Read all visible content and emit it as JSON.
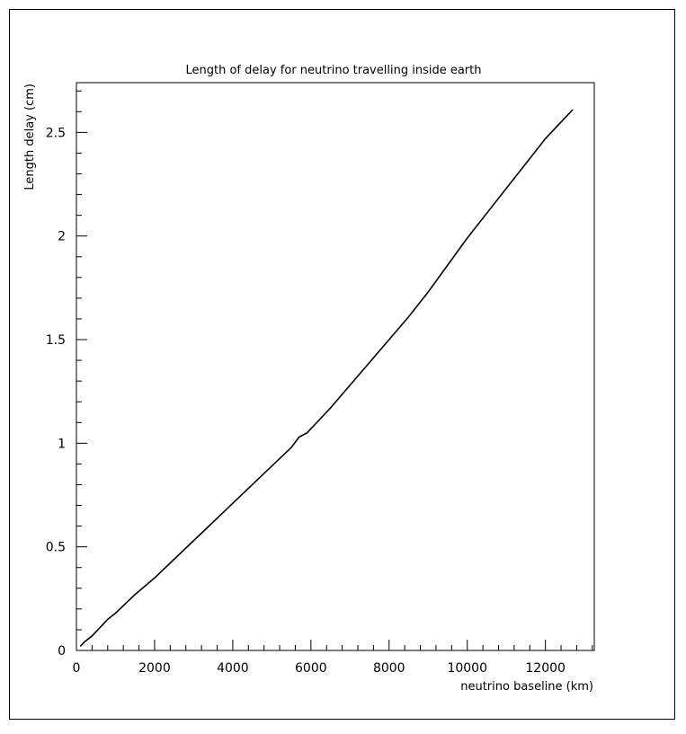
{
  "chart_data": {
    "type": "line",
    "title": "Length of delay for neutrino travelling inside earth",
    "xlabel": "neutrino baseline  (km)",
    "ylabel": "Length delay (cm)",
    "xlim": [
      0,
      13250
    ],
    "ylim": [
      0,
      2.74
    ],
    "xticks": [
      0,
      2000,
      4000,
      6000,
      8000,
      10000,
      12000
    ],
    "xtick_labels": [
      "0",
      "2000",
      "4000",
      "6000",
      "8000",
      "10000",
      "12000"
    ],
    "yticks": [
      0,
      0.5,
      1,
      1.5,
      2,
      2.5
    ],
    "ytick_labels": [
      "0",
      "0.5",
      "1",
      "1.5",
      "2",
      "2.5"
    ],
    "grid": false,
    "legend": "none",
    "series": [
      {
        "x": [
          100,
          200,
          400,
          600,
          800,
          1000,
          1500,
          2000,
          2500,
          3000,
          3500,
          4000,
          4500,
          5000,
          5500,
          5700,
          5900,
          6000,
          6500,
          7000,
          7500,
          8000,
          8500,
          9000,
          9500,
          10000,
          10500,
          11000,
          11500,
          12000,
          12500,
          12700
        ],
        "y": [
          0.02,
          0.04,
          0.07,
          0.11,
          0.15,
          0.18,
          0.27,
          0.35,
          0.44,
          0.53,
          0.62,
          0.71,
          0.8,
          0.89,
          0.98,
          1.03,
          1.05,
          1.07,
          1.17,
          1.28,
          1.39,
          1.5,
          1.61,
          1.73,
          1.86,
          1.99,
          2.11,
          2.23,
          2.35,
          2.47,
          2.57,
          2.61
        ]
      }
    ]
  }
}
